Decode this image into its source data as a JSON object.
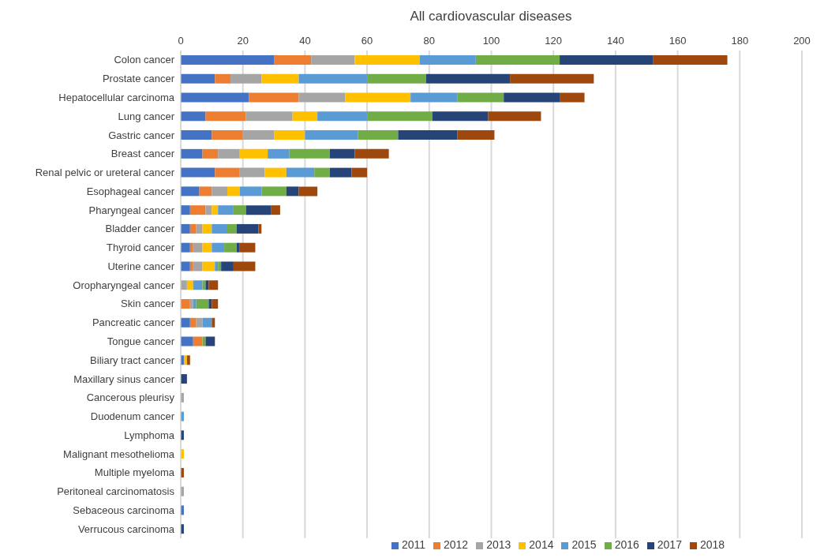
{
  "chart_data": {
    "type": "bar",
    "orientation": "horizontal",
    "stacked": true,
    "title": "All cardiovascular diseases",
    "categories": [
      "Colon cancer",
      "Prostate cancer",
      "Hepatocellular carcinoma",
      "Lung cancer",
      "Gastric cancer",
      "Breast cancer",
      "Renal pelvic or ureteral cancer",
      "Esophageal cancer",
      "Pharyngeal cancer",
      "Bladder cancer",
      "Thyroid cancer",
      "Uterine cancer",
      "Oropharyngeal cancer",
      "Skin cancer",
      "Pancreatic cancer",
      "Tongue cancer",
      "Biliary tract cancer",
      "Maxillary sinus cancer",
      "Cancerous pleurisy",
      "Duodenum cancer",
      "Lymphoma",
      "Malignant mesothelioma",
      "Multiple myeloma",
      "Peritoneal carcinomatosis",
      "Sebaceous carcinoma",
      "Verrucous carcinoma"
    ],
    "series": [
      {
        "name": "2011",
        "color": "#4472c4",
        "values": [
          30,
          11,
          22,
          8,
          10,
          7,
          11,
          6,
          3,
          3,
          3,
          3,
          0,
          0,
          3,
          4,
          1,
          0,
          0,
          0,
          0,
          0,
          0,
          0,
          1,
          0
        ]
      },
      {
        "name": "2012",
        "color": "#ed7d31",
        "values": [
          12,
          5,
          16,
          13,
          10,
          5,
          8,
          4,
          5,
          2,
          1,
          1,
          0,
          3,
          2,
          3,
          0,
          0,
          0,
          0,
          0,
          0,
          0,
          0,
          0,
          0
        ]
      },
      {
        "name": "2013",
        "color": "#a5a5a5",
        "values": [
          14,
          10,
          15,
          15,
          10,
          7,
          8,
          5,
          2,
          2,
          3,
          3,
          2,
          1,
          2,
          0,
          0,
          0,
          1,
          0,
          0,
          0,
          0,
          1,
          0,
          0
        ]
      },
      {
        "name": "2014",
        "color": "#ffc000",
        "values": [
          21,
          12,
          21,
          8,
          10,
          9,
          7,
          4,
          2,
          3,
          3,
          4,
          2,
          0,
          0,
          0,
          1,
          0,
          0,
          0,
          0,
          1,
          0,
          0,
          0,
          0
        ]
      },
      {
        "name": "2015",
        "color": "#5b9bd5",
        "values": [
          18,
          22,
          15,
          16,
          17,
          7,
          9,
          7,
          5,
          5,
          4,
          1,
          3,
          1,
          3,
          0,
          0,
          0,
          0,
          1,
          0,
          0,
          0,
          0,
          0,
          0
        ]
      },
      {
        "name": "2016",
        "color": "#70ad47",
        "values": [
          27,
          19,
          15,
          21,
          13,
          13,
          5,
          8,
          4,
          3,
          4,
          1,
          1,
          4,
          0,
          1,
          0,
          0,
          0,
          0,
          0,
          0,
          0,
          0,
          0,
          0
        ]
      },
      {
        "name": "2017",
        "color": "#264478",
        "values": [
          30,
          27,
          18,
          18,
          19,
          8,
          7,
          4,
          8,
          7,
          1,
          4,
          1,
          1,
          0,
          3,
          0,
          2,
          0,
          0,
          1,
          0,
          0,
          0,
          0,
          1
        ]
      },
      {
        "name": "2018",
        "color": "#9e480e",
        "values": [
          24,
          27,
          8,
          17,
          12,
          11,
          5,
          6,
          3,
          1,
          5,
          7,
          3,
          2,
          1,
          0,
          1,
          0,
          0,
          0,
          0,
          0,
          1,
          0,
          0,
          0
        ]
      }
    ],
    "xlim": [
      0,
      200
    ],
    "xticks": [
      0,
      20,
      40,
      60,
      80,
      100,
      120,
      140,
      160,
      180,
      200
    ],
    "grid": "x",
    "legend": "bottom"
  }
}
